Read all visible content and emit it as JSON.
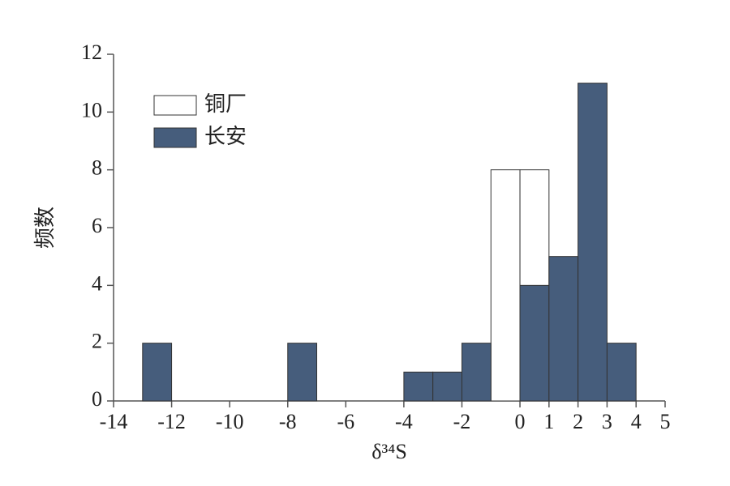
{
  "chart_data": {
    "type": "histogram",
    "x_label": "δ³⁴S",
    "y_label": "频数",
    "bins": [
      -14,
      -13,
      -12,
      -11,
      -10,
      -9,
      -8,
      -7,
      -6,
      -5,
      -4,
      -3,
      -2,
      -1,
      0,
      1,
      2,
      3,
      4,
      5
    ],
    "series": [
      {
        "name": "铜厂",
        "color": "#ffffff",
        "values": [
          0,
          0,
          0,
          0,
          0,
          0,
          0,
          0,
          0,
          0,
          0,
          0,
          0,
          8,
          8,
          3,
          0,
          0,
          0
        ]
      },
      {
        "name": "长安",
        "color": "#465d7c",
        "values": [
          0,
          2,
          0,
          0,
          0,
          0,
          2,
          0,
          0,
          0,
          1,
          1,
          2,
          0,
          4,
          5,
          11,
          2,
          0
        ]
      }
    ],
    "xlim": [
      -14,
      5
    ],
    "xticks": [
      -14,
      -12,
      -10,
      -8,
      -6,
      -4,
      -2,
      0,
      1,
      2,
      3,
      4,
      5
    ],
    "ylim": [
      0,
      12
    ],
    "yticks": [
      0,
      2,
      4,
      6,
      8,
      10,
      12
    ],
    "legend": "upper left"
  }
}
